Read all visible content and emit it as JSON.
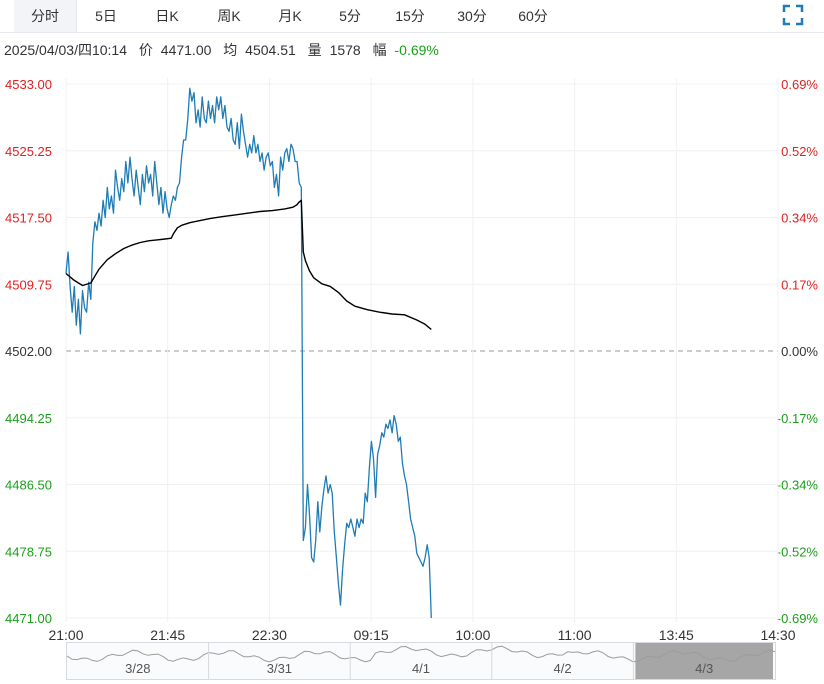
{
  "tabs": [
    {
      "label": "分时",
      "active": true
    },
    {
      "label": "5日"
    },
    {
      "label": "日K"
    },
    {
      "label": "周K"
    },
    {
      "label": "月K"
    },
    {
      "label": "5分"
    },
    {
      "label": "15分"
    },
    {
      "label": "30分"
    },
    {
      "label": "60分"
    }
  ],
  "info": {
    "datetime": "2025/04/03/四10:14",
    "price_label": "价",
    "price": "4471.00",
    "avg_label": "均",
    "avg": "4504.51",
    "volume_label": "量",
    "volume": "1578",
    "change_label": "幅",
    "change": "-0.69%"
  },
  "colors": {
    "up": "#e02020",
    "down": "#1aa01a",
    "neutral": "#333333",
    "price_line": "#1f7cb5",
    "avg_line": "#000000",
    "grid": "#eef0f4",
    "base_line": "#999999"
  },
  "chart_data": {
    "type": "line",
    "base_price": 4502.0,
    "ylim": [
      4471.0,
      4533.0
    ],
    "y_ticks": [
      "4533.00",
      "4525.25",
      "4517.50",
      "4509.75",
      "4502.00",
      "4494.25",
      "4486.50",
      "4478.75",
      "4471.00"
    ],
    "pct_ticks": [
      "0.69%",
      "0.52%",
      "0.34%",
      "0.17%",
      "0.00%",
      "-0.17%",
      "-0.34%",
      "-0.52%",
      "-0.69%"
    ],
    "x_ticks": [
      "21:00",
      "21:45",
      "22:30",
      "09:15",
      "10:00",
      "11:00",
      "13:45",
      "14:30"
    ],
    "xlim": [
      0,
      345
    ],
    "series": [
      {
        "kind": "price",
        "points": [
          [
            0,
            4511.0
          ],
          [
            1,
            4513.5
          ],
          [
            2,
            4509.5
          ],
          [
            3,
            4506.5
          ],
          [
            4,
            4509.5
          ],
          [
            5,
            4505.0
          ],
          [
            6,
            4508.0
          ],
          [
            7,
            4504.0
          ],
          [
            8,
            4509.0
          ],
          [
            9,
            4507.0
          ],
          [
            10,
            4506.5
          ],
          [
            11,
            4510.0
          ],
          [
            12,
            4508.0
          ],
          [
            13,
            4514.5
          ],
          [
            14,
            4517.0
          ],
          [
            15,
            4516.0
          ],
          [
            16,
            4518.0
          ],
          [
            17,
            4516.5
          ],
          [
            18,
            4519.5
          ],
          [
            19,
            4517.5
          ],
          [
            20,
            4521.0
          ],
          [
            21,
            4518.5
          ],
          [
            22,
            4520.0
          ],
          [
            23,
            4518.0
          ],
          [
            24,
            4523.0
          ],
          [
            25,
            4521.0
          ],
          [
            26,
            4519.5
          ],
          [
            27,
            4522.0
          ],
          [
            28,
            4520.5
          ],
          [
            29,
            4524.0
          ],
          [
            30,
            4521.5
          ],
          [
            31,
            4524.5
          ],
          [
            32,
            4522.0
          ],
          [
            33,
            4520.0
          ],
          [
            34,
            4523.0
          ],
          [
            35,
            4521.0
          ],
          [
            36,
            4519.0
          ],
          [
            37,
            4522.5
          ],
          [
            38,
            4520.5
          ],
          [
            39,
            4523.5
          ],
          [
            40,
            4521.5
          ],
          [
            41,
            4522.5
          ],
          [
            42,
            4520.0
          ],
          [
            43,
            4524.0
          ],
          [
            44,
            4521.5
          ],
          [
            45,
            4519.0
          ],
          [
            46,
            4521.0
          ],
          [
            47,
            4518.0
          ],
          [
            48,
            4520.5
          ],
          [
            49,
            4518.5
          ],
          [
            50,
            4517.5
          ],
          [
            51,
            4519.0
          ],
          [
            52,
            4520.0
          ],
          [
            53,
            4519.5
          ],
          [
            54,
            4521.0
          ],
          [
            55,
            4521.5
          ],
          [
            56,
            4524.5
          ],
          [
            57,
            4526.5
          ],
          [
            58,
            4526.5
          ],
          [
            59,
            4529.0
          ],
          [
            60,
            4532.5
          ],
          [
            61,
            4531.0
          ],
          [
            62,
            4532.0
          ],
          [
            63,
            4528.5
          ],
          [
            64,
            4530.0
          ],
          [
            65,
            4528.0
          ],
          [
            66,
            4531.5
          ],
          [
            67,
            4529.0
          ],
          [
            68,
            4528.5
          ],
          [
            69,
            4531.0
          ],
          [
            70,
            4529.0
          ],
          [
            71,
            4530.5
          ],
          [
            72,
            4528.5
          ],
          [
            73,
            4531.5
          ],
          [
            74,
            4530.0
          ],
          [
            75,
            4531.5
          ],
          [
            76,
            4529.0
          ],
          [
            77,
            4530.5
          ],
          [
            78,
            4528.0
          ],
          [
            79,
            4527.5
          ],
          [
            80,
            4529.0
          ],
          [
            81,
            4526.5
          ],
          [
            82,
            4526.0
          ],
          [
            83,
            4528.5
          ],
          [
            84,
            4525.5
          ],
          [
            85,
            4529.5
          ],
          [
            86,
            4527.5
          ],
          [
            87,
            4526.0
          ],
          [
            88,
            4524.5
          ],
          [
            89,
            4526.0
          ],
          [
            90,
            4525.0
          ],
          [
            91,
            4527.0
          ],
          [
            92,
            4525.0
          ],
          [
            93,
            4526.0
          ],
          [
            94,
            4524.0
          ],
          [
            95,
            4525.0
          ],
          [
            96,
            4523.0
          ],
          [
            97,
            4524.5
          ],
          [
            98,
            4525.0
          ],
          [
            99,
            4523.5
          ],
          [
            100,
            4524.0
          ],
          [
            101,
            4521.0
          ],
          [
            102,
            4522.5
          ],
          [
            103,
            4520.0
          ],
          [
            104,
            4524.5
          ],
          [
            105,
            4523.0
          ],
          [
            106,
            4525.0
          ],
          [
            107,
            4525.5
          ],
          [
            108,
            4524.0
          ],
          [
            109,
            4526.0
          ],
          [
            110,
            4525.5
          ],
          [
            111,
            4524.0
          ],
          [
            112,
            4524.0
          ],
          [
            113,
            4521.5
          ],
          [
            114,
            4521.0
          ],
          [
            115,
            4480.0
          ],
          [
            116,
            4481.5
          ],
          [
            117,
            4486.5
          ],
          [
            118,
            4483.0
          ],
          [
            119,
            4478.0
          ],
          [
            120,
            4477.5
          ],
          [
            121,
            4480.0
          ],
          [
            122,
            4484.5
          ],
          [
            123,
            4481.0
          ],
          [
            124,
            4484.0
          ],
          [
            125,
            4486.0
          ],
          [
            126,
            4487.5
          ],
          [
            127,
            4485.5
          ],
          [
            128,
            4486.5
          ],
          [
            129,
            4485.5
          ],
          [
            130,
            4481.0
          ],
          [
            131,
            4478.0
          ],
          [
            132,
            4475.0
          ],
          [
            133,
            4472.5
          ],
          [
            134,
            4476.5
          ],
          [
            135,
            4479.5
          ],
          [
            136,
            4482.0
          ],
          [
            137,
            4481.5
          ],
          [
            138,
            4482.5
          ],
          [
            139,
            4481.5
          ],
          [
            140,
            4480.5
          ],
          [
            141,
            4482.5
          ],
          [
            142,
            4481.5
          ],
          [
            143,
            4482.5
          ],
          [
            144,
            4482.0
          ],
          [
            145,
            4485.5
          ],
          [
            146,
            4484.5
          ],
          [
            147,
            4488.5
          ],
          [
            148,
            4491.5
          ],
          [
            149,
            4489.5
          ],
          [
            150,
            4485.0
          ],
          [
            151,
            4490.0
          ],
          [
            152,
            4491.0
          ],
          [
            153,
            4492.5
          ],
          [
            154,
            4492.0
          ],
          [
            155,
            4493.5
          ],
          [
            156,
            4493.0
          ],
          [
            157,
            4494.0
          ],
          [
            158,
            4492.5
          ],
          [
            159,
            4494.5
          ],
          [
            160,
            4493.5
          ],
          [
            161,
            4491.5
          ],
          [
            162,
            4492.0
          ],
          [
            163,
            4489.0
          ],
          [
            164,
            4487.5
          ],
          [
            165,
            4486.5
          ],
          [
            166,
            4484.5
          ],
          [
            167,
            4482.5
          ],
          [
            168,
            4481.5
          ],
          [
            169,
            4480.5
          ],
          [
            170,
            4478.5
          ],
          [
            171,
            4478.0
          ],
          [
            172,
            4477.5
          ],
          [
            173,
            4477.0
          ],
          [
            174,
            4478.0
          ],
          [
            175,
            4479.5
          ],
          [
            176,
            4478.0
          ],
          [
            177,
            4471.0
          ]
        ]
      },
      {
        "kind": "average",
        "points": [
          [
            0,
            4511.0
          ],
          [
            4,
            4510.2
          ],
          [
            8,
            4509.6
          ],
          [
            12,
            4509.9
          ],
          [
            16,
            4511.5
          ],
          [
            20,
            4512.6
          ],
          [
            24,
            4513.3
          ],
          [
            28,
            4513.9
          ],
          [
            32,
            4514.3
          ],
          [
            36,
            4514.6
          ],
          [
            40,
            4514.8
          ],
          [
            44,
            4514.9
          ],
          [
            48,
            4515.0
          ],
          [
            51,
            4515.1
          ],
          [
            52,
            4515.6
          ],
          [
            54,
            4516.3
          ],
          [
            56,
            4516.6
          ],
          [
            60,
            4516.9
          ],
          [
            64,
            4517.1
          ],
          [
            70,
            4517.4
          ],
          [
            76,
            4517.6
          ],
          [
            82,
            4517.8
          ],
          [
            88,
            4518.0
          ],
          [
            94,
            4518.2
          ],
          [
            100,
            4518.3
          ],
          [
            106,
            4518.5
          ],
          [
            110,
            4518.7
          ],
          [
            112,
            4519.0
          ],
          [
            113,
            4519.3
          ],
          [
            114,
            4519.5
          ],
          [
            115,
            4513.5
          ],
          [
            116,
            4512.5
          ],
          [
            118,
            4511.3
          ],
          [
            120,
            4510.5
          ],
          [
            124,
            4509.8
          ],
          [
            128,
            4509.5
          ],
          [
            132,
            4508.8
          ],
          [
            136,
            4507.8
          ],
          [
            140,
            4507.2
          ],
          [
            146,
            4506.8
          ],
          [
            152,
            4506.5
          ],
          [
            158,
            4506.3
          ],
          [
            164,
            4506.2
          ],
          [
            170,
            4505.6
          ],
          [
            174,
            4505.1
          ],
          [
            177,
            4504.5
          ]
        ]
      }
    ]
  },
  "navigator": {
    "labels": [
      "3/28",
      "3/31",
      "4/1",
      "4/2",
      "4/3"
    ]
  }
}
